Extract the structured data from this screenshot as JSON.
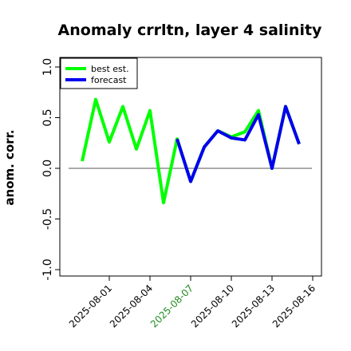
{
  "chart_data": {
    "type": "line",
    "title": "Anomaly crrltn, layer 4 salinity",
    "ylabel": "anom. corr.",
    "xlabel": "",
    "ylim": [
      -1.0,
      1.0
    ],
    "yticks": [
      -1.0,
      -0.5,
      0.0,
      0.5,
      1.0
    ],
    "ytick_labels": [
      "-1.0",
      "-0.5",
      "0.0",
      "0.5",
      "1.0"
    ],
    "x": [
      "2025-07-30",
      "2025-07-31",
      "2025-08-01",
      "2025-08-02",
      "2025-08-03",
      "2025-08-04",
      "2025-08-05",
      "2025-08-06",
      "2025-08-07",
      "2025-08-08",
      "2025-08-09",
      "2025-08-10",
      "2025-08-11",
      "2025-08-12",
      "2025-08-13",
      "2025-08-14",
      "2025-08-15",
      "2025-08-16"
    ],
    "xticks": [
      "2025-08-01",
      "2025-08-04",
      "2025-08-07",
      "2025-08-10",
      "2025-08-13",
      "2025-08-16"
    ],
    "xtick_colors": [
      "#000000",
      "#000000",
      "#228b22",
      "#000000",
      "#000000",
      "#000000"
    ],
    "series": [
      {
        "name": "best est.",
        "color": "#00ff00",
        "values": [
          0.07,
          0.68,
          0.26,
          0.61,
          0.19,
          0.57,
          -0.34,
          0.29,
          -0.13,
          0.21,
          0.37,
          0.31,
          0.36,
          0.57,
          0.0,
          0.61,
          0.24,
          null
        ]
      },
      {
        "name": "forecast",
        "color": "#0000ee",
        "values": [
          null,
          null,
          null,
          null,
          null,
          null,
          null,
          0.29,
          -0.13,
          0.21,
          0.37,
          0.3,
          0.28,
          0.53,
          0.0,
          0.61,
          0.24,
          null
        ]
      }
    ],
    "reference_line": 0.0,
    "legend": "top-left",
    "grid": false
  }
}
